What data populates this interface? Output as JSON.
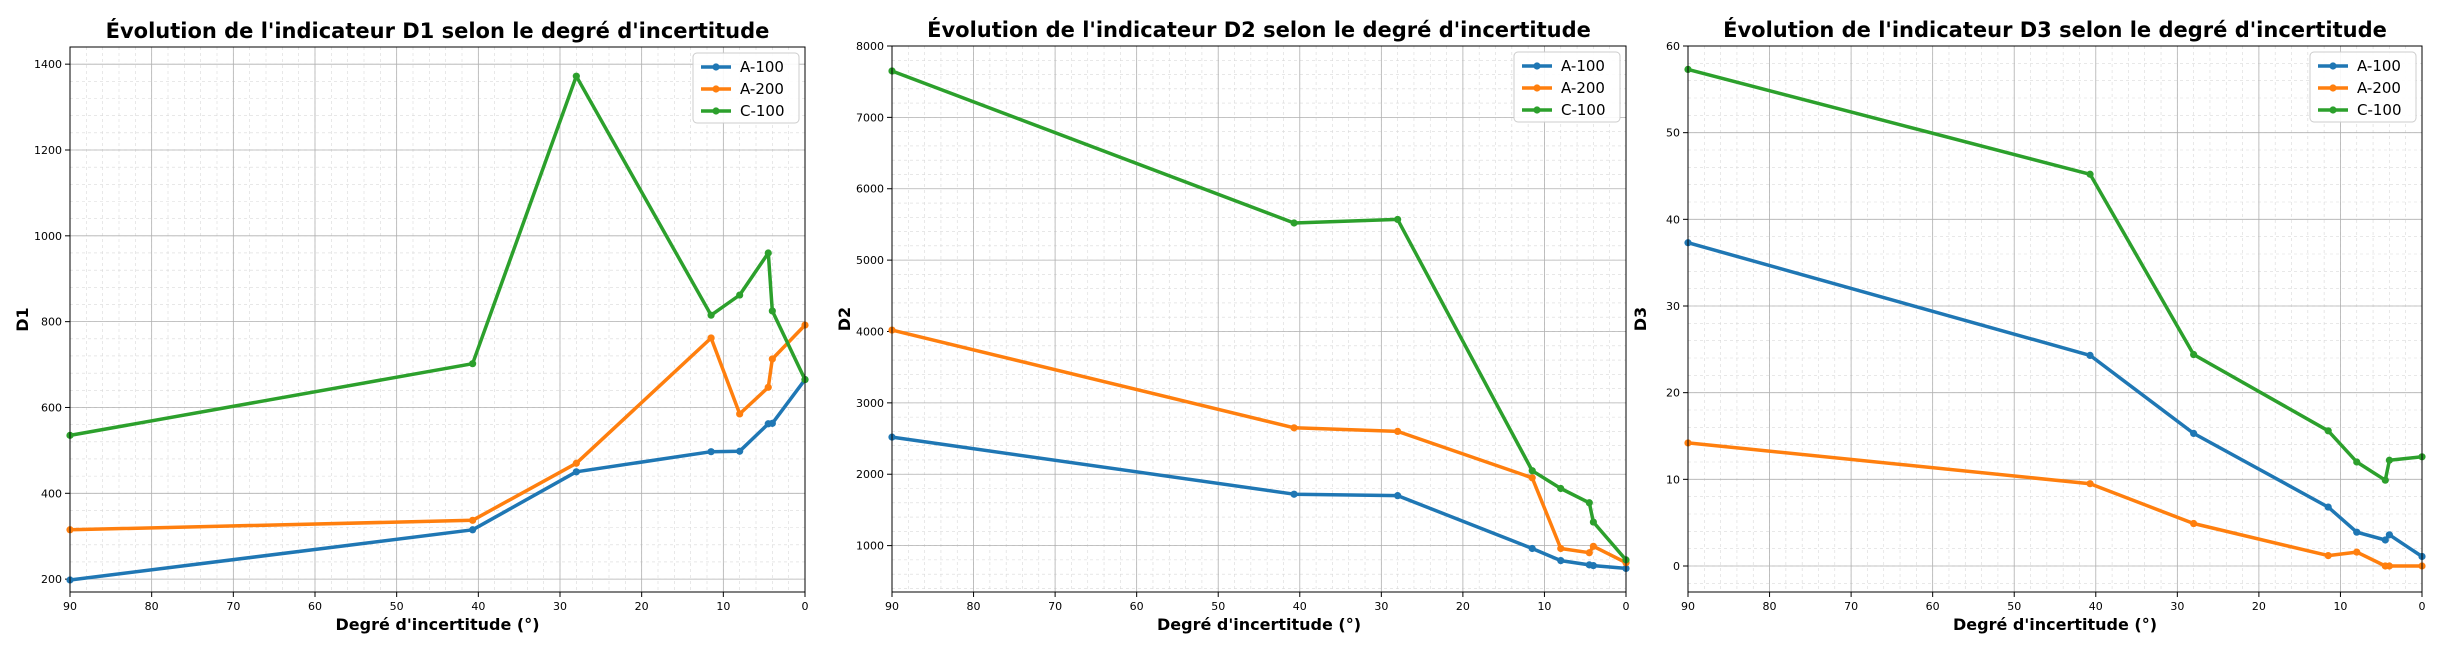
{
  "colors": {
    "A-100": "#1f77b4",
    "A-200": "#ff7f0e",
    "C-100": "#2ca02c",
    "grid": "#b0b0b0"
  },
  "chart_data": [
    {
      "type": "line",
      "title": "Évolution de l'indicateur D1 selon le degré d'incertitude",
      "xlabel": "Degré d'incertitude (°)",
      "ylabel": "D1",
      "xlim": [
        90,
        0
      ],
      "ylim": [
        170,
        1440
      ],
      "xticks": [
        "90",
        "80",
        "70",
        "60",
        "50",
        "40",
        "30",
        "20",
        "10",
        "0"
      ],
      "yticks": [
        "200",
        "400",
        "600",
        "800",
        "1000",
        "1200",
        "1400"
      ],
      "grid": true,
      "legend": "top-right",
      "x": [
        90,
        40.7,
        28,
        11.5,
        8,
        4.5,
        4,
        0
      ],
      "series": [
        {
          "name": "A-100",
          "values": [
            198,
            315,
            450,
            497,
            498,
            562,
            563,
            665
          ]
        },
        {
          "name": "A-200",
          "values": [
            315,
            337,
            470,
            762,
            585,
            647,
            713,
            792
          ]
        },
        {
          "name": "C-100",
          "values": [
            535,
            702,
            1372,
            815,
            862,
            960,
            825,
            665
          ]
        }
      ]
    },
    {
      "type": "line",
      "title": "Évolution de l'indicateur D2 selon le degré d'incertitude",
      "xlabel": "Degré d'incertitude (°)",
      "ylabel": "D2",
      "xlim": [
        90,
        0
      ],
      "ylim": [
        350,
        8000
      ],
      "xticks": [
        "90",
        "80",
        "70",
        "60",
        "50",
        "40",
        "30",
        "20",
        "10",
        "0"
      ],
      "yticks": [
        "1000",
        "2000",
        "3000",
        "4000",
        "5000",
        "6000",
        "7000",
        "8000"
      ],
      "grid": true,
      "legend": "top-right",
      "x": [
        90,
        40.7,
        28,
        11.5,
        8,
        4.5,
        4,
        0
      ],
      "series": [
        {
          "name": "A-100",
          "values": [
            2520,
            1720,
            1700,
            960,
            790,
            730,
            720,
            680
          ]
        },
        {
          "name": "A-200",
          "values": [
            4020,
            2650,
            2600,
            1950,
            960,
            900,
            990,
            760
          ]
        },
        {
          "name": "C-100",
          "values": [
            7650,
            5520,
            5570,
            2050,
            1800,
            1600,
            1330,
            800
          ]
        }
      ]
    },
    {
      "type": "line",
      "title": "Évolution de l'indicateur D3 selon le degré d'incertitude",
      "xlabel": "Degré d'incertitude (°)",
      "ylabel": "D3",
      "xlim": [
        90,
        0
      ],
      "ylim": [
        -3,
        60
      ],
      "xticks": [
        "90",
        "80",
        "70",
        "60",
        "50",
        "40",
        "30",
        "20",
        "10",
        "0"
      ],
      "yticks": [
        "0",
        "10",
        "20",
        "30",
        "40",
        "50",
        "60"
      ],
      "grid": true,
      "legend": "top-right",
      "x": [
        90,
        40.7,
        28,
        11.5,
        8,
        4.5,
        4,
        0
      ],
      "series": [
        {
          "name": "A-100",
          "values": [
            37.3,
            24.3,
            15.3,
            6.8,
            3.9,
            3.0,
            3.6,
            1.1
          ]
        },
        {
          "name": "A-200",
          "values": [
            14.2,
            9.5,
            4.9,
            1.2,
            1.6,
            0.0,
            0.0,
            0.0
          ]
        },
        {
          "name": "C-100",
          "values": [
            57.3,
            45.2,
            24.4,
            15.6,
            12.0,
            9.9,
            12.2,
            12.6
          ]
        }
      ]
    }
  ]
}
